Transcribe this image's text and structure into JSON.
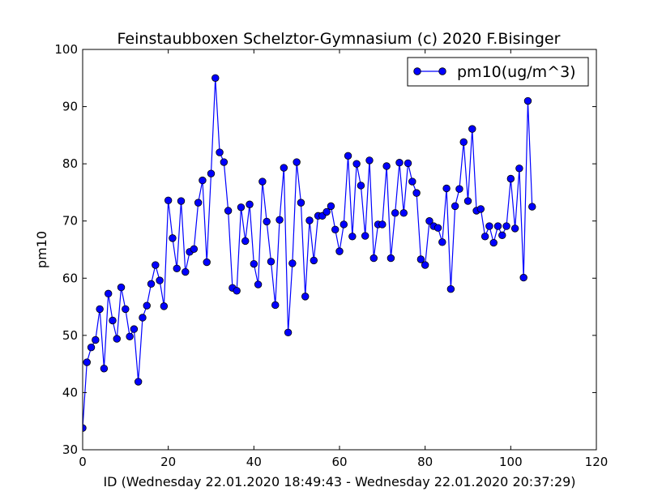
{
  "chart_data": {
    "type": "line",
    "title": "Feinstaubboxen Schelztor-Gymnasium (c) 2020 F.Bisinger",
    "xlabel": "ID (Wednesday 22.01.2020 18:49:43 - Wednesday 22.01.2020 20:37:29)",
    "ylabel": "pm10",
    "xlim": [
      0,
      120
    ],
    "ylim": [
      30,
      100
    ],
    "xticks": [
      "0",
      "20",
      "40",
      "60",
      "80",
      "100",
      "120"
    ],
    "yticks": [
      "30",
      "40",
      "50",
      "60",
      "70",
      "80",
      "90",
      "100"
    ],
    "grid": false,
    "legend_position": "top-right",
    "series": [
      {
        "name": "pm10(ug/m^3)",
        "color": "#0000ff",
        "marker": "circle",
        "x": [
          0,
          1,
          2,
          3,
          4,
          5,
          6,
          7,
          8,
          9,
          10,
          11,
          12,
          13,
          14,
          15,
          16,
          17,
          18,
          19,
          20,
          21,
          22,
          23,
          24,
          25,
          26,
          27,
          28,
          29,
          30,
          31,
          32,
          33,
          34,
          35,
          36,
          37,
          38,
          39,
          40,
          41,
          42,
          43,
          44,
          45,
          46,
          47,
          48,
          49,
          50,
          51,
          52,
          53,
          54,
          55,
          56,
          57,
          58,
          59,
          60,
          61,
          62,
          63,
          64,
          65,
          66,
          67,
          68,
          69,
          70,
          71,
          72,
          73,
          74,
          75,
          76,
          77,
          78,
          79,
          80,
          81,
          82,
          83,
          84,
          85,
          86,
          87,
          88,
          89,
          90,
          91,
          92,
          93,
          94,
          95,
          96,
          97,
          98,
          99,
          100,
          101,
          102,
          103,
          104,
          105
        ],
        "y": [
          33.8,
          45.3,
          47.9,
          49.2,
          54.6,
          44.2,
          57.3,
          52.6,
          49.4,
          58.4,
          54.6,
          49.8,
          51.1,
          41.9,
          53.1,
          55.2,
          59.0,
          62.3,
          59.6,
          55.1,
          73.6,
          67.0,
          61.7,
          73.5,
          61.1,
          64.6,
          65.1,
          73.2,
          77.1,
          62.8,
          78.3,
          95.0,
          82.0,
          80.3,
          71.8,
          58.3,
          57.8,
          72.4,
          66.5,
          72.9,
          62.5,
          58.9,
          76.9,
          69.9,
          62.9,
          55.3,
          70.2,
          79.3,
          50.5,
          62.6,
          80.3,
          73.2,
          56.8,
          70.1,
          63.1,
          70.9,
          70.9,
          71.6,
          72.6,
          68.5,
          64.7,
          69.4,
          81.4,
          67.3,
          80.0,
          76.2,
          67.4,
          80.6,
          63.5,
          69.4,
          69.4,
          79.6,
          63.5,
          71.4,
          80.2,
          71.4,
          80.1,
          76.9,
          74.9,
          63.3,
          62.3,
          70.0,
          69.1,
          68.8,
          66.3,
          75.7,
          58.1,
          72.6,
          75.6,
          83.8,
          73.5,
          86.1,
          71.8,
          72.1,
          67.3,
          69.1,
          66.2,
          69.1,
          67.5,
          69.1,
          77.4,
          68.7,
          79.2,
          60.1,
          91.0,
          72.5
        ]
      }
    ]
  }
}
